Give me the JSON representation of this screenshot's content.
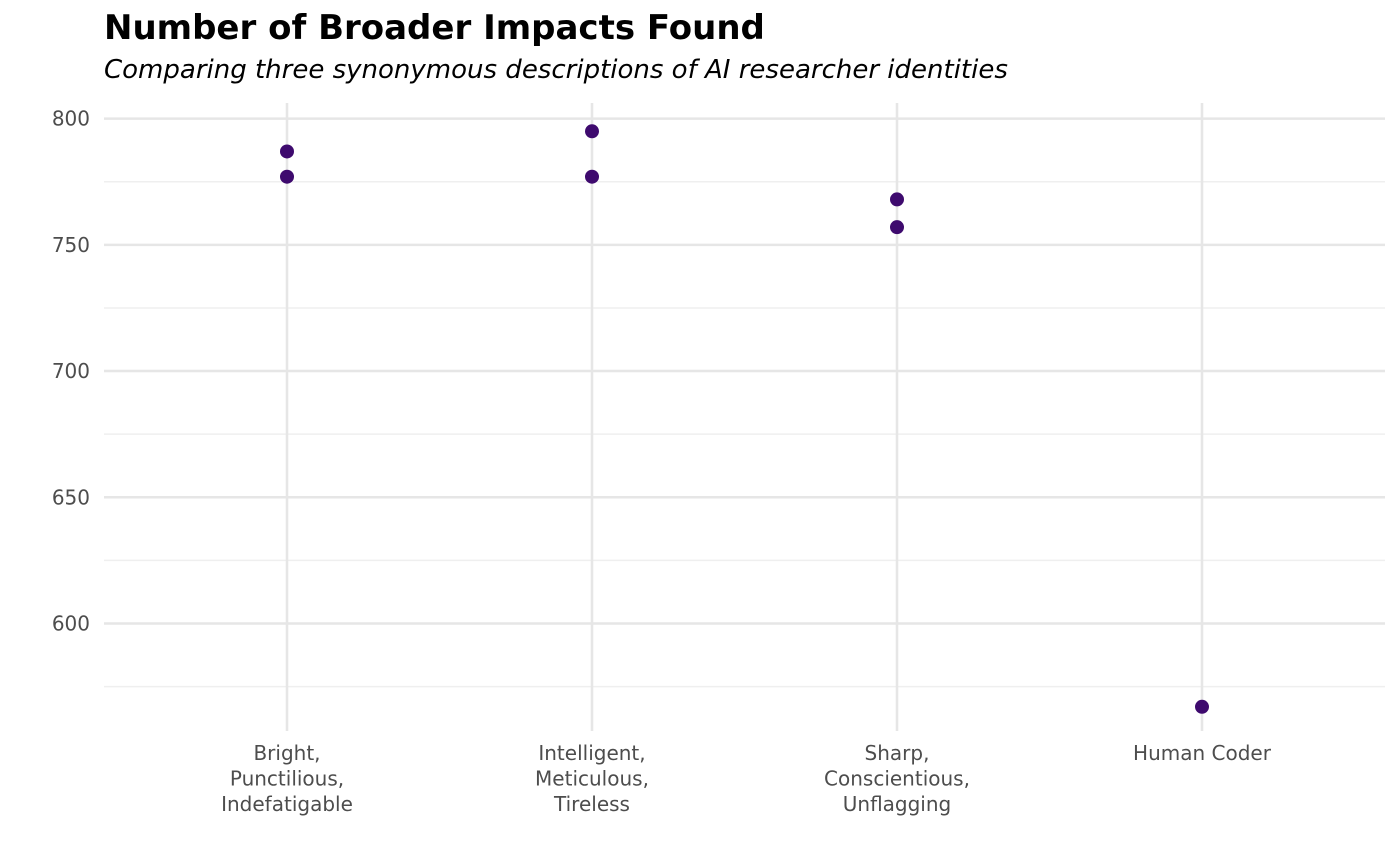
{
  "chart_data": {
    "type": "scatter",
    "title": "Number of Broader Impacts Found",
    "subtitle": "Comparing three synonymous descriptions of AI researcher identities",
    "xlabel": "",
    "ylabel": "",
    "categories": [
      [
        "Bright,",
        "Punctilious,",
        "Indefatigable"
      ],
      [
        "Intelligent,",
        "Meticulous,",
        "Tireless"
      ],
      [
        "Sharp,",
        "Conscientious,",
        "Unflagging"
      ],
      [
        "Human Coder"
      ]
    ],
    "points": [
      {
        "category": 0,
        "y": 787
      },
      {
        "category": 0,
        "y": 777
      },
      {
        "category": 1,
        "y": 795
      },
      {
        "category": 1,
        "y": 777
      },
      {
        "category": 2,
        "y": 768
      },
      {
        "category": 2,
        "y": 757
      },
      {
        "category": 3,
        "y": 567
      }
    ],
    "yticks": [
      600,
      650,
      700,
      750,
      800
    ],
    "ylim": [
      557.4,
      806.2
    ],
    "grid": true,
    "legend": "none",
    "colors": {
      "point": "#3e0a6e",
      "grid_major": "#e6e6e6",
      "grid_minor": "#efefef",
      "tick_text": "#4d4d4d"
    }
  }
}
